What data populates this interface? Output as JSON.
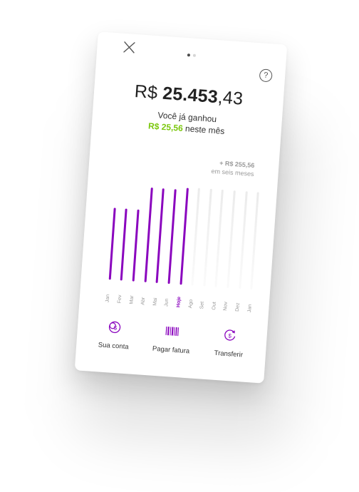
{
  "header": {
    "close_icon": "close-icon",
    "help_icon": "help-icon",
    "help_symbol": "?",
    "pager": {
      "count": 2,
      "active": 0
    }
  },
  "balance": {
    "currency": "R$ ",
    "integer": "25.453",
    "decimal": ",43"
  },
  "earnings": {
    "line1": "Você já ganhou",
    "amount": "R$ 25,56",
    "suffix": " neste mês"
  },
  "projection": {
    "amount": "+ R$ 255,56",
    "label": "em seis meses"
  },
  "colors": {
    "accent": "#8a05be",
    "green": "#7ac70c",
    "future_bar": "#ebebeb"
  },
  "chart_data": {
    "type": "bar",
    "categories": [
      "Jan",
      "Fev",
      "Mar",
      "Abr",
      "Mai",
      "Jun",
      "Hoje",
      "Ago",
      "Set",
      "Out",
      "Nov",
      "Dez",
      "Jan"
    ],
    "values": [
      0.72,
      0.72,
      0.72,
      0.95,
      0.95,
      0.95,
      0.97,
      0.98,
      0.98,
      0.98,
      0.98,
      0.98,
      0.98
    ],
    "past_count": 7,
    "current_index": 6,
    "ylim": [
      0,
      1
    ]
  },
  "actions": [
    {
      "label": "Sua conta",
      "icon": "coins-icon"
    },
    {
      "label": "Pagar fatura",
      "icon": "barcode-icon"
    },
    {
      "label": "Transferir",
      "icon": "transfer-money-icon"
    }
  ]
}
